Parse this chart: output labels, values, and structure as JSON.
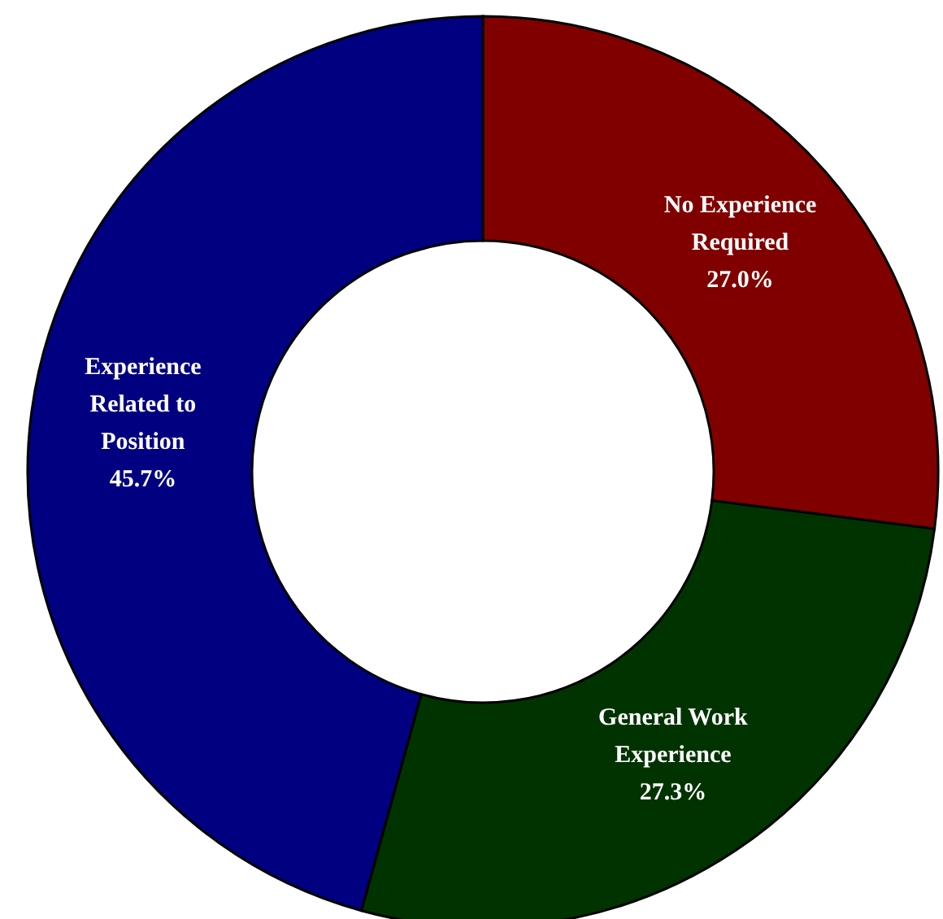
{
  "chart_data": {
    "type": "donut",
    "categories": [
      "No Experience Required",
      "General Work Experience",
      "Experience Related to Position"
    ],
    "values": [
      27.0,
      27.3,
      45.7
    ],
    "colors": [
      "#800000",
      "#003300",
      "#000080"
    ],
    "value_labels": [
      "27.0%",
      "27.3%",
      "45.7%"
    ]
  }
}
